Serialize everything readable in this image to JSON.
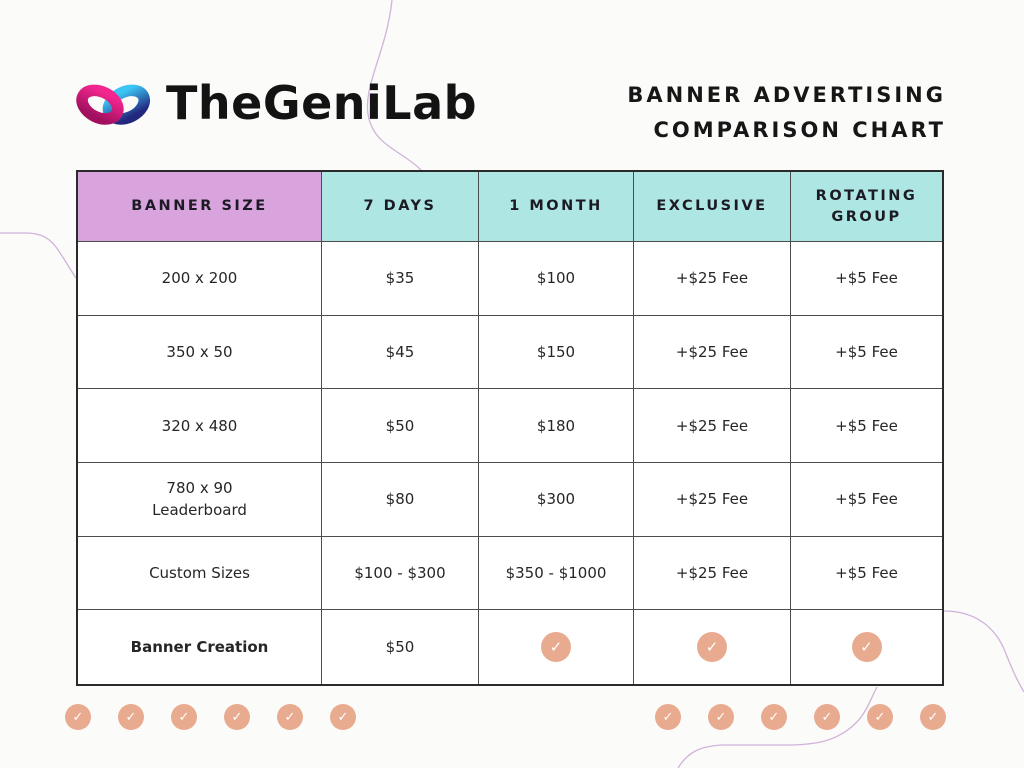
{
  "brand": {
    "name": "TheGeniLab",
    "logo_icon": "infinity-gradient-mark"
  },
  "title": {
    "line1": "BANNER ADVERTISING",
    "line2": "COMPARISON CHART"
  },
  "chart_data": {
    "type": "table",
    "title": "Banner Advertising Comparison Chart",
    "columns": [
      "BANNER SIZE",
      "7 DAYS",
      "1 MONTH",
      "EXCLUSIVE",
      "ROTATING\nGROUP"
    ],
    "rows": [
      [
        "200 x 200",
        "$35",
        "$100",
        "+$25 Fee",
        "+$5 Fee"
      ],
      [
        "350 x 50",
        "$45",
        "$150",
        "+$25 Fee",
        "+$5 Fee"
      ],
      [
        "320 x 480",
        "$50",
        "$180",
        "+$25 Fee",
        "+$5 Fee"
      ],
      [
        "780 x 90\nLeaderboard",
        "$80",
        "$300",
        "+$25 Fee",
        "+$5 Fee"
      ],
      [
        "Custom Sizes",
        "$100 - $300",
        "$350 - $1000",
        "+$25 Fee",
        "+$5 Fee"
      ],
      [
        "Banner Creation",
        "$50",
        "check",
        "check",
        "check"
      ]
    ],
    "emphasis": {
      "row": 5,
      "col": 0
    },
    "check_symbol": "✓"
  },
  "decor": {
    "left_checks": 6,
    "right_checks": 6
  },
  "colors": {
    "header_banner_size_bg": "#d9a3de",
    "header_bg": "#aee6e4",
    "check_circle": "#e9ab90",
    "curve_accent": "#c9a4d6",
    "grid_line": "#4c4c4c",
    "table_frame": "#2a2a2a",
    "logo_pink_top": "#f3268f",
    "logo_pink_bottom": "#a1105f",
    "logo_blue_top": "#3cc5f4",
    "logo_blue_bottom": "#22287e"
  }
}
